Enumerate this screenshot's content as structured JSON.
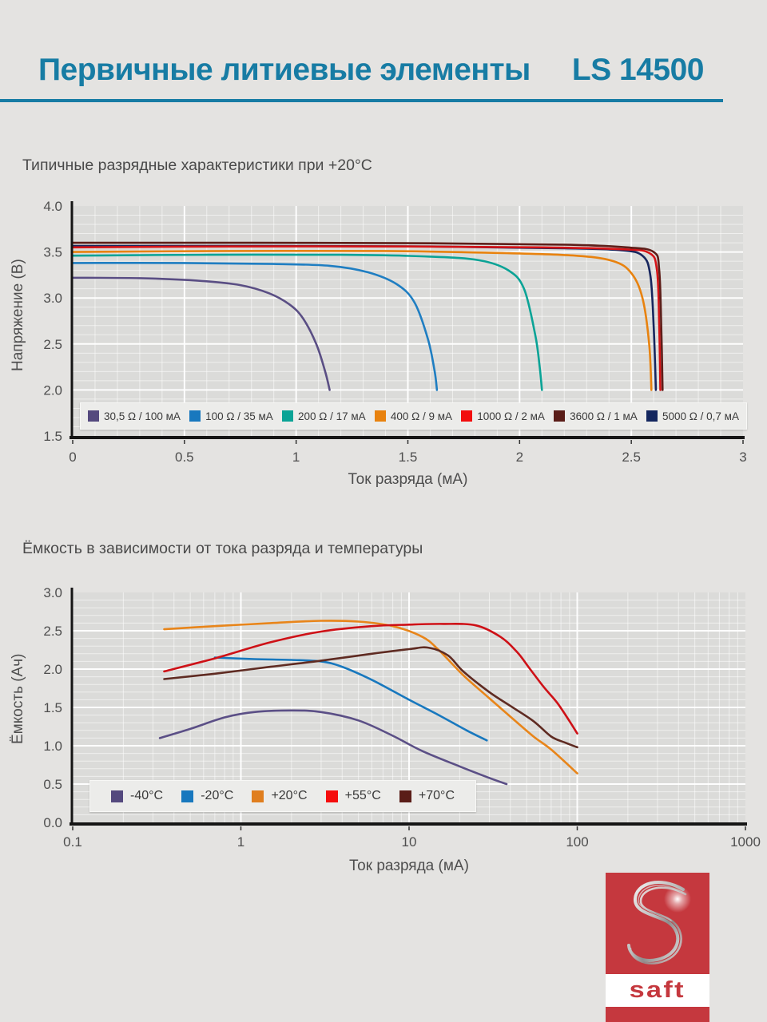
{
  "header": {
    "title": "Первичные литиевые элементы",
    "model": "LS 14500",
    "accent_color": "#177CA4"
  },
  "logo": {
    "text": "saft",
    "color": "#C5383E",
    "icon": "saft-s-swirl-icon"
  },
  "chart_data": [
    {
      "type": "line",
      "title": "Типичные разрядные характеристики при +20°C",
      "xlabel": "Ток разряда (мА)",
      "ylabel": "Напряжение (В)",
      "x_scale": "linear",
      "xlim": [
        0,
        3
      ],
      "ylim": [
        1.5,
        4.0
      ],
      "x_ticks": [
        0,
        0.5,
        1,
        1.5,
        2,
        2.5,
        3
      ],
      "x_tick_labels": [
        "0",
        "0.5",
        "1",
        "1.5",
        "2",
        "2.5",
        "3"
      ],
      "y_ticks": [
        1.5,
        2.0,
        2.5,
        3.0,
        3.5,
        4.0
      ],
      "y_tick_labels": [
        "1.5",
        "2.0",
        "2.5",
        "3.0",
        "3.5",
        "4.0"
      ],
      "grid": "minor 0.1 both axes, white on gray",
      "legend_position": "inside-bottom",
      "series": [
        {
          "name": "30,5 Ω / 100 мА",
          "color": "#5A4E84",
          "swatch": "#54497E",
          "points": [
            [
              0,
              3.22
            ],
            [
              0.3,
              3.215
            ],
            [
              0.55,
              3.19
            ],
            [
              0.75,
              3.14
            ],
            [
              0.88,
              3.05
            ],
            [
              0.97,
              2.93
            ],
            [
              1.03,
              2.78
            ],
            [
              1.09,
              2.5
            ],
            [
              1.13,
              2.2
            ],
            [
              1.15,
              2.0
            ]
          ]
        },
        {
          "name": "100 Ω / 35 мА",
          "color": "#1F7EC2",
          "swatch": "#1878BE",
          "points": [
            [
              0,
              3.38
            ],
            [
              0.5,
              3.38
            ],
            [
              0.9,
              3.37
            ],
            [
              1.15,
              3.35
            ],
            [
              1.32,
              3.28
            ],
            [
              1.45,
              3.15
            ],
            [
              1.53,
              2.95
            ],
            [
              1.59,
              2.55
            ],
            [
              1.62,
              2.2
            ],
            [
              1.63,
              2.0
            ]
          ]
        },
        {
          "name": "200 Ω / 17 мА",
          "color": "#0AA396",
          "swatch": "#0AA396",
          "points": [
            [
              0,
              3.46
            ],
            [
              0.6,
              3.47
            ],
            [
              1.2,
              3.47
            ],
            [
              1.6,
              3.45
            ],
            [
              1.82,
              3.41
            ],
            [
              1.95,
              3.3
            ],
            [
              2.02,
              3.1
            ],
            [
              2.07,
              2.6
            ],
            [
              2.09,
              2.25
            ],
            [
              2.1,
              2.0
            ]
          ]
        },
        {
          "name": "400 Ω / 9 мА",
          "color": "#E8820E",
          "swatch": "#E8820E",
          "points": [
            [
              0,
              3.5
            ],
            [
              0.7,
              3.51
            ],
            [
              1.4,
              3.51
            ],
            [
              1.9,
              3.49
            ],
            [
              2.25,
              3.46
            ],
            [
              2.42,
              3.4
            ],
            [
              2.5,
              3.27
            ],
            [
              2.55,
              3.0
            ],
            [
              2.58,
              2.5
            ],
            [
              2.59,
              2.0
            ]
          ]
        },
        {
          "name": "5000 Ω / 0,7 мА",
          "color": "#17265E",
          "swatch": "#13265E",
          "points": [
            [
              0,
              3.565
            ],
            [
              0.8,
              3.565
            ],
            [
              1.6,
              3.56
            ],
            [
              2.2,
              3.54
            ],
            [
              2.45,
              3.52
            ],
            [
              2.55,
              3.46
            ],
            [
              2.585,
              3.25
            ],
            [
              2.6,
              2.7
            ],
            [
              2.61,
              2.0
            ]
          ]
        },
        {
          "name": "1000 Ω / 2 мА",
          "color": "#D51317",
          "swatch": "#F20D0D",
          "points": [
            [
              0,
              3.55
            ],
            [
              0.7,
              3.56
            ],
            [
              1.5,
              3.56
            ],
            [
              2.1,
              3.55
            ],
            [
              2.45,
              3.53
            ],
            [
              2.58,
              3.49
            ],
            [
              2.615,
              3.3
            ],
            [
              2.625,
              2.7
            ],
            [
              2.63,
              2.0
            ]
          ]
        },
        {
          "name": "3600 Ω / 1 мА",
          "color": "#5E1F1A",
          "swatch": "#5A1D18",
          "points": [
            [
              0,
              3.6
            ],
            [
              0.8,
              3.6
            ],
            [
              1.6,
              3.595
            ],
            [
              2.2,
              3.58
            ],
            [
              2.48,
              3.55
            ],
            [
              2.6,
              3.5
            ],
            [
              2.625,
              3.3
            ],
            [
              2.635,
              2.6
            ],
            [
              2.64,
              2.0
            ]
          ]
        }
      ],
      "legend_order": [
        "30,5 Ω / 100 мА",
        "100 Ω / 35 мА",
        "200 Ω / 17 мА",
        "400 Ω / 9 мА",
        "1000 Ω / 2 мА",
        "3600 Ω / 1 мА",
        "5000 Ω / 0,7 мА"
      ]
    },
    {
      "type": "line",
      "title": "Ёмкость в зависимости от тока разряда и температуры",
      "xlabel": "Ток разряда (мА)",
      "ylabel": "Ёмкость (Ач)",
      "x_scale": "log",
      "xlim": [
        0.1,
        1000
      ],
      "ylim": [
        0,
        3
      ],
      "x_ticks": [
        0.1,
        1,
        10,
        100,
        1000
      ],
      "x_tick_labels": [
        "0.1",
        "1",
        "10",
        "100",
        "1000"
      ],
      "y_ticks": [
        0,
        0.5,
        1.0,
        1.5,
        2.0,
        2.5,
        3.0
      ],
      "y_tick_labels": [
        "0.0",
        "0.5",
        "1.0",
        "1.5",
        "2.0",
        "2.5",
        "3.0"
      ],
      "grid": "log minor vertical, 0.1 minor horizontal, white on gray",
      "legend_position": "inside-bottom",
      "series": [
        {
          "name": "-40°C",
          "color": "#5B4F86",
          "swatch": "#54497E",
          "points": [
            [
              0.33,
              1.1
            ],
            [
              0.5,
              1.22
            ],
            [
              0.8,
              1.37
            ],
            [
              1.2,
              1.44
            ],
            [
              2,
              1.46
            ],
            [
              3,
              1.44
            ],
            [
              5,
              1.33
            ],
            [
              8,
              1.13
            ],
            [
              12,
              0.93
            ],
            [
              20,
              0.73
            ],
            [
              30,
              0.58
            ],
            [
              38,
              0.5
            ]
          ]
        },
        {
          "name": "-20°C",
          "color": "#1878BE",
          "swatch": "#1878BE",
          "points": [
            [
              0.7,
              2.15
            ],
            [
              1.2,
              2.13
            ],
            [
              2,
              2.12
            ],
            [
              3,
              2.1
            ],
            [
              4,
              2.03
            ],
            [
              6,
              1.86
            ],
            [
              10,
              1.6
            ],
            [
              15,
              1.4
            ],
            [
              22,
              1.2
            ],
            [
              29,
              1.07
            ]
          ]
        },
        {
          "name": "+20°C",
          "color": "#E8851A",
          "swatch": "#E07E1E",
          "points": [
            [
              0.35,
              2.52
            ],
            [
              0.7,
              2.56
            ],
            [
              1.5,
              2.6
            ],
            [
              3,
              2.63
            ],
            [
              5,
              2.62
            ],
            [
              8,
              2.56
            ],
            [
              12,
              2.42
            ],
            [
              15,
              2.25
            ],
            [
              21,
              1.92
            ],
            [
              30,
              1.62
            ],
            [
              40,
              1.38
            ],
            [
              55,
              1.12
            ],
            [
              70,
              0.95
            ],
            [
              100,
              0.64
            ]
          ]
        },
        {
          "name": "+55°C",
          "color": "#CE1117",
          "swatch": "#F50D0D",
          "points": [
            [
              0.35,
              1.97
            ],
            [
              0.7,
              2.14
            ],
            [
              1.5,
              2.35
            ],
            [
              3,
              2.49
            ],
            [
              6,
              2.56
            ],
            [
              10,
              2.58
            ],
            [
              16,
              2.59
            ],
            [
              25,
              2.57
            ],
            [
              35,
              2.42
            ],
            [
              44,
              2.22
            ],
            [
              52,
              2.01
            ],
            [
              63,
              1.77
            ],
            [
              76,
              1.56
            ],
            [
              90,
              1.32
            ],
            [
              100,
              1.16
            ]
          ]
        },
        {
          "name": "+70°C",
          "color": "#5F2B22",
          "swatch": "#5A1D18",
          "points": [
            [
              0.35,
              1.87
            ],
            [
              0.7,
              1.94
            ],
            [
              1.5,
              2.03
            ],
            [
              3,
              2.11
            ],
            [
              6,
              2.2
            ],
            [
              10,
              2.26
            ],
            [
              13,
              2.28
            ],
            [
              17,
              2.18
            ],
            [
              21,
              1.97
            ],
            [
              30,
              1.7
            ],
            [
              40,
              1.52
            ],
            [
              55,
              1.32
            ],
            [
              70,
              1.12
            ],
            [
              85,
              1.04
            ],
            [
              100,
              0.98
            ]
          ]
        }
      ],
      "legend_order": [
        "-40°C",
        "-20°C",
        "+20°C",
        "+55°C",
        "+70°C"
      ]
    }
  ]
}
